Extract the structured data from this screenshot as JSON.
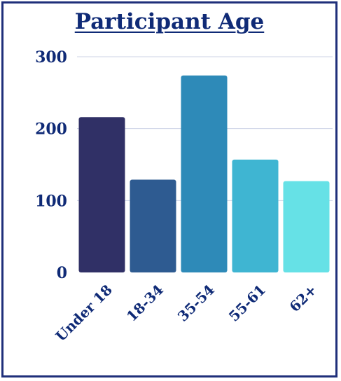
{
  "chart_data": {
    "type": "bar",
    "title": "Participant Age",
    "categories": [
      "Under 18",
      "18-34",
      "35-54",
      "55-61",
      "62+"
    ],
    "values": [
      216,
      129,
      274,
      157,
      127
    ],
    "colors": [
      "#303066",
      "#2e5b91",
      "#2e8ab8",
      "#3fb5d2",
      "#66e1e6"
    ],
    "yticks": [
      0,
      100,
      200,
      300
    ],
    "ylim": [
      0,
      300
    ],
    "grid": true,
    "xlabel": "",
    "ylabel": ""
  }
}
